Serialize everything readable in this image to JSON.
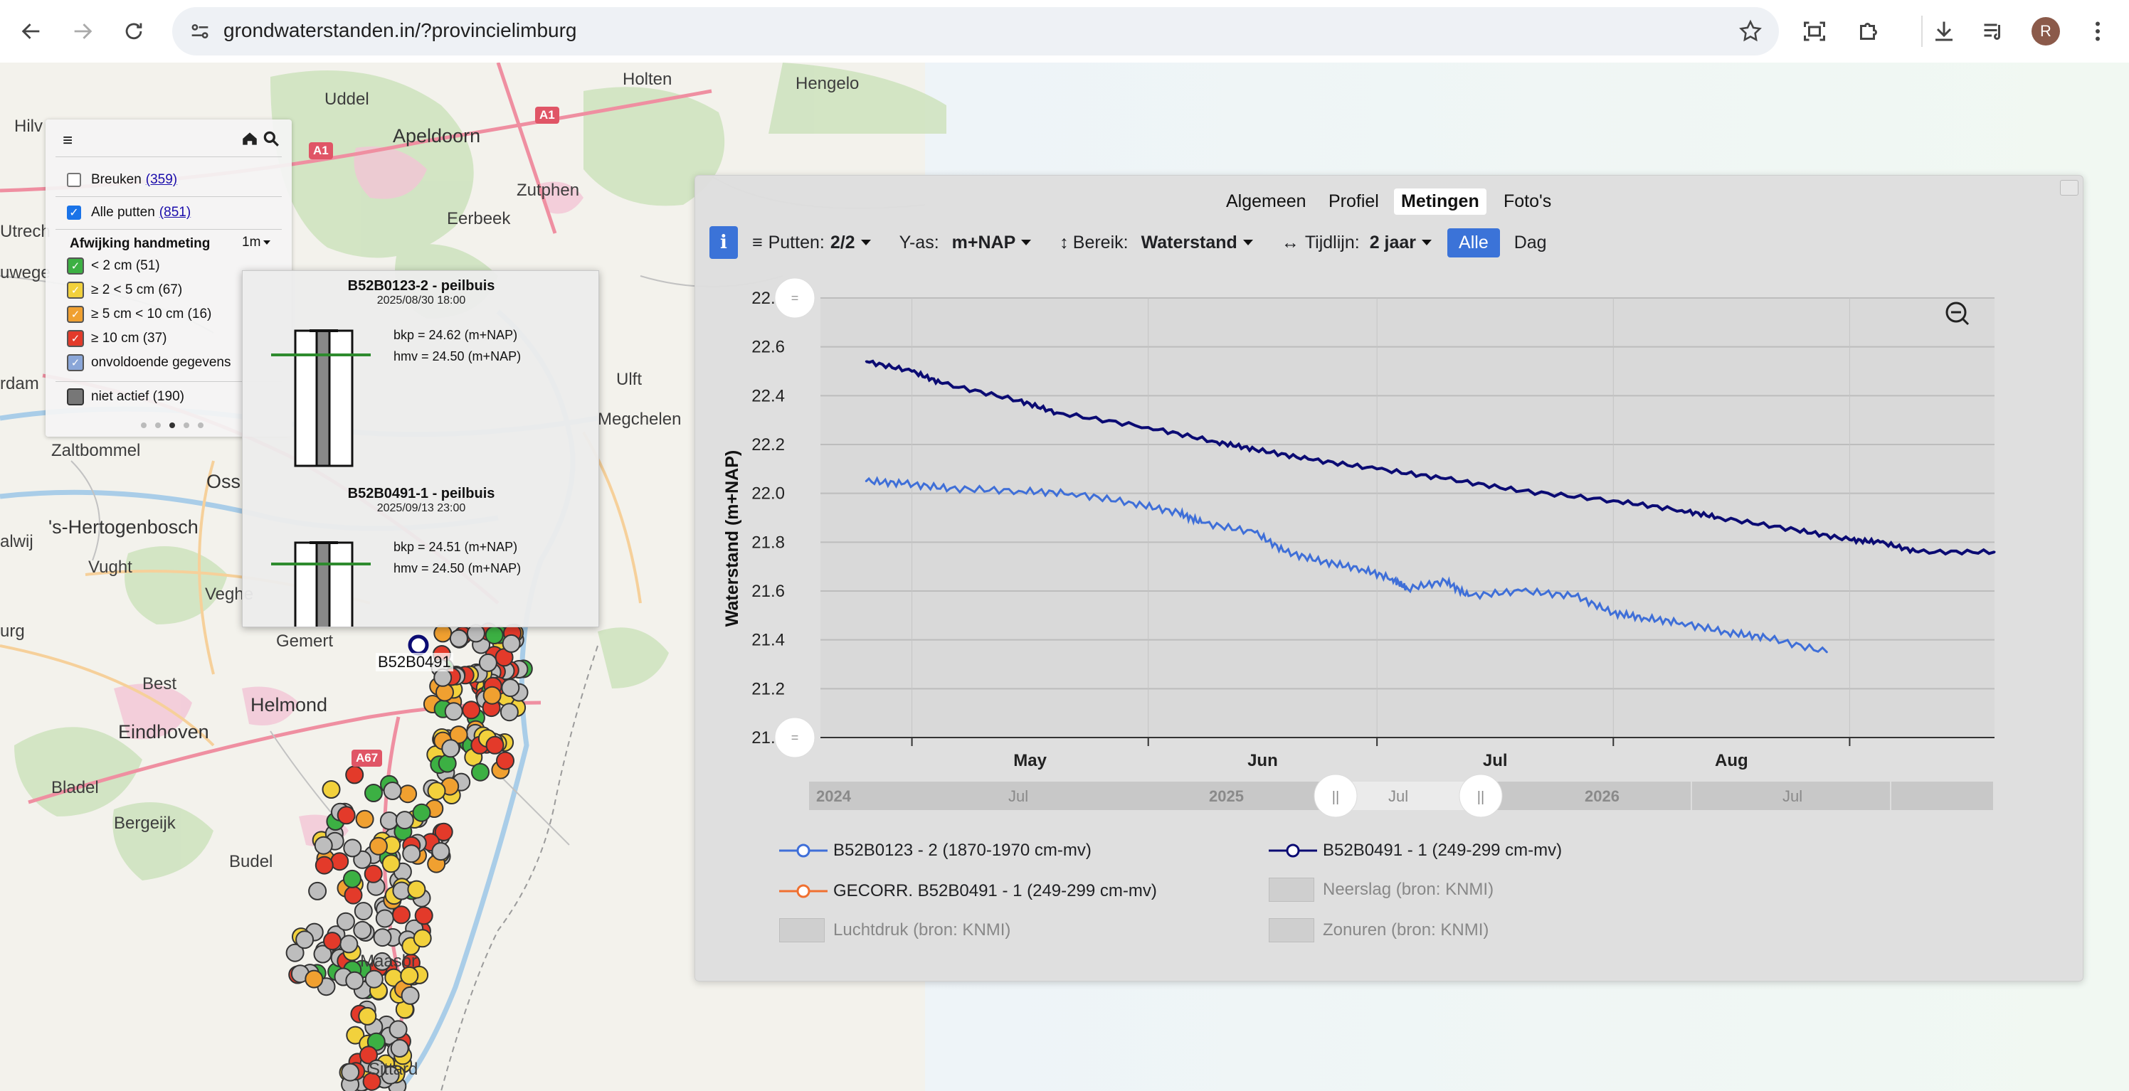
{
  "browser": {
    "url": "grondwaterstanden.in/?provincielimburg",
    "profile_initial": "R",
    "icons": [
      "back-icon",
      "forward-icon",
      "reload-icon",
      "site-settings-icon",
      "bookmark-star-icon",
      "screen-capture-icon",
      "extensions-icon",
      "downloads-icon",
      "media-icon",
      "profile-avatar",
      "menu-kebab-icon"
    ]
  },
  "map": {
    "places": [
      "Holten",
      "Hengelo",
      "Uddel",
      "Apeldoorn",
      "Zutphen",
      "Eerbeek",
      "Ulft",
      "Megchelen",
      "Zaltbommel",
      "Oss",
      "'s-Hertogenbosch",
      "Vught",
      "Veghe",
      "Gemert",
      "Best",
      "Helmond",
      "Eindhoven",
      "Bladel",
      "Bergeijk",
      "Budel",
      "Maasbr",
      "Sittard",
      "Utrech",
      "uwege",
      "rdam",
      "urg",
      "alwij",
      "Hilv"
    ],
    "roads": [
      "A1",
      "A1",
      "A67"
    ],
    "marker_label": "B52B0491"
  },
  "layers": {
    "breuken_label": "Breuken",
    "breuken_count": "(359)",
    "putten_label": "Alle putten",
    "putten_count": "(851)",
    "deviation_title": "Afwijking handmeting",
    "deviation_period": "1m",
    "classes": [
      {
        "label": "< 2 cm (51)",
        "color": "#3cb043"
      },
      {
        "label": "≥ 2 < 5 cm (67)",
        "color": "#f2d13c"
      },
      {
        "label": "≥ 5 cm < 10 cm (16)",
        "color": "#f0a030"
      },
      {
        "label": "≥ 10 cm (37)",
        "color": "#e33a2a"
      },
      {
        "label": "onvoldoende gegevens",
        "color": "#8aa6d8"
      }
    ],
    "inactive_label": "niet actief (190)",
    "page_dots": 5,
    "page_active": 2
  },
  "popup": {
    "well1": {
      "title": "B52B0123-2 - peilbuis",
      "date": "2025/08/30 18:00",
      "bkp": "bkp = 24.62 (m+NAP)",
      "hmv": "hmv = 24.50 (m+NAP)"
    },
    "well2": {
      "title": "B52B0491-1 - peilbuis",
      "date": "2025/09/13 23:00",
      "bkp": "bkp = 24.51 (m+NAP)",
      "hmv": "hmv = 24.50 (m+NAP)"
    }
  },
  "panel": {
    "tabs": [
      "Algemeen",
      "Profiel",
      "Metingen",
      "Foto's"
    ],
    "active_tab": "Metingen",
    "info_label": "i",
    "putten_label": "Putten:",
    "putten_value": "2/2",
    "yas_label": "Y-as:",
    "yas_value": "m+NAP",
    "bereik_label": "Bereik:",
    "bereik_value": "Waterstand",
    "tijdlijn_label": "Tijdlijn:",
    "tijdlijn_value": "2 jaar",
    "alle_label": "Alle",
    "dag_label": "Dag"
  },
  "chart_data": {
    "type": "line",
    "ylabel": "Waterstand (m+NAP)",
    "ylim": [
      21.0,
      22.8
    ],
    "yticks": [
      "22.8",
      "22.6",
      "22.4",
      "22.2",
      "22.0",
      "21.8",
      "21.6",
      "21.4",
      "21.2",
      "21.0"
    ],
    "xlim": [
      "2025-04-19",
      "2025-09-20"
    ],
    "xticks": [
      {
        "date": "2025-05-01",
        "label": "May"
      },
      {
        "date": "2025-06-01",
        "label": "Jun"
      },
      {
        "date": "2025-07-01",
        "label": "Jul"
      },
      {
        "date": "2025-08-01",
        "label": "Aug"
      }
    ],
    "grid": true,
    "series": [
      {
        "name": "B52B0491 - 1 (249-299 cm-mv)",
        "color": "#0b0b73",
        "x": [
          "2025-04-25",
          "2025-05-01",
          "2025-05-05",
          "2025-05-15",
          "2025-05-20",
          "2025-06-01",
          "2025-06-10",
          "2025-06-15",
          "2025-06-22",
          "2025-07-01",
          "2025-07-10",
          "2025-07-20",
          "2025-08-01",
          "2025-08-10",
          "2025-08-15",
          "2025-08-25",
          "2025-09-01",
          "2025-09-05",
          "2025-09-10",
          "2025-09-20"
        ],
        "y": [
          22.54,
          22.5,
          22.45,
          22.38,
          22.33,
          22.27,
          22.21,
          22.18,
          22.14,
          22.1,
          22.06,
          22.01,
          21.97,
          21.93,
          21.9,
          21.85,
          21.81,
          21.8,
          21.76,
          21.76
        ]
      },
      {
        "name": "B52B0123 - 2 (1870-1970 cm-mv)",
        "color": "#3f6fd8",
        "x": [
          "2025-04-25",
          "2025-04-30",
          "2025-05-06",
          "2025-05-15",
          "2025-05-22",
          "2025-05-30",
          "2025-06-05",
          "2025-06-08",
          "2025-06-15",
          "2025-06-19",
          "2025-06-24",
          "2025-06-29",
          "2025-07-03",
          "2025-07-05",
          "2025-07-10",
          "2025-07-13",
          "2025-07-20",
          "2025-07-27",
          "2025-08-01",
          "2025-08-05",
          "2025-08-10",
          "2025-08-16",
          "2025-08-21",
          "2025-08-29"
        ],
        "y": [
          22.05,
          22.04,
          22.02,
          22.01,
          22.0,
          21.96,
          21.92,
          21.88,
          21.84,
          21.76,
          21.72,
          21.69,
          21.65,
          21.61,
          21.64,
          21.58,
          21.6,
          21.58,
          21.51,
          21.49,
          21.47,
          21.43,
          21.41,
          21.35
        ]
      },
      {
        "name": "GECORR. B52B0491 - 1 (249-299 cm-mv)",
        "color": "#f07030",
        "x": [],
        "y": []
      }
    ],
    "navigator": {
      "labels": [
        "2024",
        "Jul",
        "2025",
        "Jul",
        "2026",
        "Jul"
      ]
    },
    "legend": [
      {
        "label": "B52B0123 - 2 (1870-1970 cm-mv)",
        "kind": "line",
        "color": "#3f6fd8",
        "active": true
      },
      {
        "label": "B52B0491 - 1 (249-299 cm-mv)",
        "kind": "line",
        "color": "#0b0b73",
        "active": true
      },
      {
        "label": "GECORR. B52B0491 - 1 (249-299 cm-mv)",
        "kind": "line",
        "color": "#f07030",
        "active": true
      },
      {
        "label": "Neerslag (bron: KNMI)",
        "kind": "box",
        "active": false
      },
      {
        "label": "Luchtdruk (bron: KNMI)",
        "kind": "box",
        "active": false
      },
      {
        "label": "Zonuren (bron: KNMI)",
        "kind": "box",
        "active": false
      }
    ]
  }
}
